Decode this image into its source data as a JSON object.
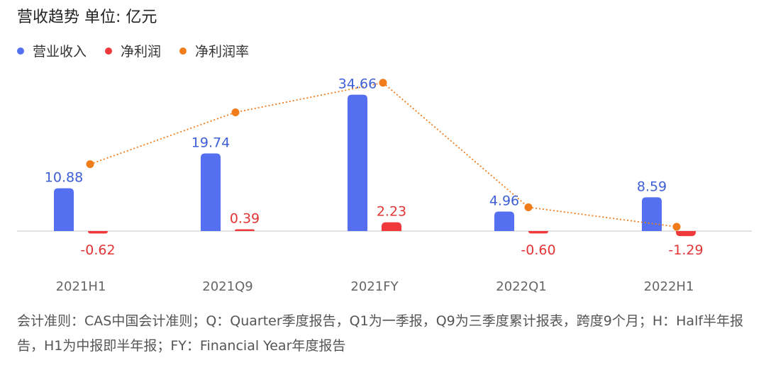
{
  "header": {
    "title": "营收趋势  单位: 亿元"
  },
  "legend": [
    {
      "label": "营业收入",
      "color": "#5470f0"
    },
    {
      "label": "净利润",
      "color": "#f0393b"
    },
    {
      "label": "净利润率",
      "color": "#f07c1b"
    }
  ],
  "chart_data": {
    "type": "bar",
    "title": "营收趋势",
    "unit": "单位: 亿元",
    "categories": [
      "2021H1",
      "2021Q9",
      "2021FY",
      "2022Q1",
      "2022H1"
    ],
    "series": [
      {
        "name": "营业收入",
        "type": "bar",
        "color": "#5470f0",
        "values": [
          10.88,
          19.74,
          34.66,
          4.96,
          8.59
        ],
        "labels": [
          "10.88",
          "19.74",
          "34.66",
          "4.96",
          "8.59"
        ]
      },
      {
        "name": "净利润",
        "type": "bar",
        "color": "#f0393b",
        "values": [
          -0.62,
          0.39,
          2.23,
          -0.6,
          -1.29
        ],
        "labels": [
          "-0.62",
          "0.39",
          "2.23",
          "-0.60",
          "-1.29"
        ]
      },
      {
        "name": "净利润率",
        "type": "line",
        "style": "dotted",
        "color": "#f07c1b",
        "values": [
          -5.7,
          2.0,
          6.4,
          -12.1,
          -15.0
        ]
      }
    ],
    "legend_position": "top-left",
    "grid": false
  },
  "footnote": "会计准则：CAS中国会计准则；Q：Quarter季度报告，Q1为一季报，Q9为三季度累计报表，跨度9个月；H：Half半年报告，H1为中报即半年报；FY：Financial Year年度报告"
}
